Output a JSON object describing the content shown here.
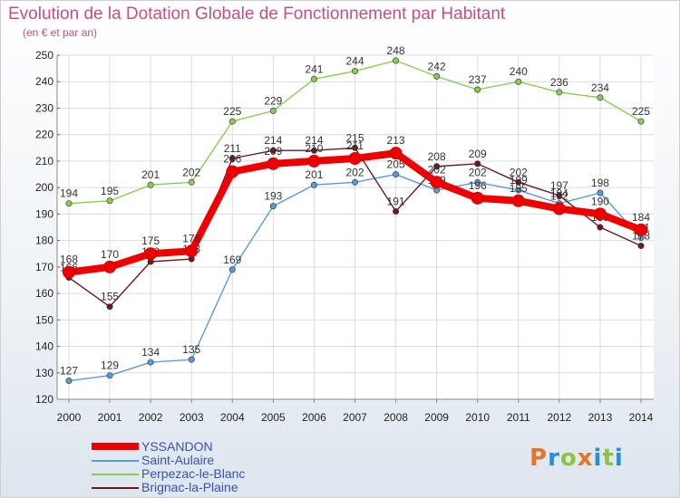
{
  "header": {
    "title": "Evolution de la Dotation Globale de Fonctionnement par Habitant",
    "subtitle": "(en € et par an)"
  },
  "logo": {
    "text": "Proxiti",
    "colors": [
      "#e8742a",
      "#2a8fd0",
      "#8bc540",
      "#e8742a",
      "#2a8fd0",
      "#8bc540",
      "#2a8fd0"
    ]
  },
  "chart_data": {
    "type": "line",
    "title": "Evolution de la Dotation Globale de Fonctionnement par Habitant",
    "subtitle": "(en € et par an)",
    "xlabel": "",
    "ylabel": "",
    "x": [
      "2000",
      "2001",
      "2002",
      "2003",
      "2004",
      "2005",
      "2006",
      "2007",
      "2008",
      "2009",
      "2010",
      "2011",
      "2012",
      "2013",
      "2014"
    ],
    "yticks": [
      120,
      130,
      140,
      150,
      160,
      170,
      180,
      190,
      200,
      210,
      220,
      230,
      240,
      250
    ],
    "ylim": [
      120,
      250
    ],
    "grid": true,
    "legend_position": "bottom-left",
    "series": [
      {
        "name": "YSSANDON",
        "color": "#ee0000",
        "emphasis": "thick",
        "values": [
          168,
          170,
          175,
          176,
          206,
          209,
          210,
          211,
          213,
          202,
          196,
          195,
          192,
          190,
          184
        ]
      },
      {
        "name": "Saint-Aulaire",
        "color": "#5b9bd5",
        "emphasis": "thin",
        "values": [
          127,
          129,
          134,
          135,
          169,
          193,
          201,
          202,
          205,
          199,
          202,
          199,
          194,
          198,
          181
        ]
      },
      {
        "name": "Perpezac-le-Blanc",
        "color": "#88cc55",
        "emphasis": "thin",
        "values": [
          194,
          195,
          201,
          202,
          225,
          229,
          241,
          244,
          248,
          242,
          237,
          240,
          236,
          234,
          225
        ]
      },
      {
        "name": "Brignac-la-Plaine",
        "color": "#6b1a22",
        "emphasis": "thin",
        "values": [
          166,
          155,
          172,
          173,
          211,
          214,
          214,
          215,
          191,
          208,
          209,
          202,
          197,
          185,
          178
        ]
      }
    ]
  }
}
